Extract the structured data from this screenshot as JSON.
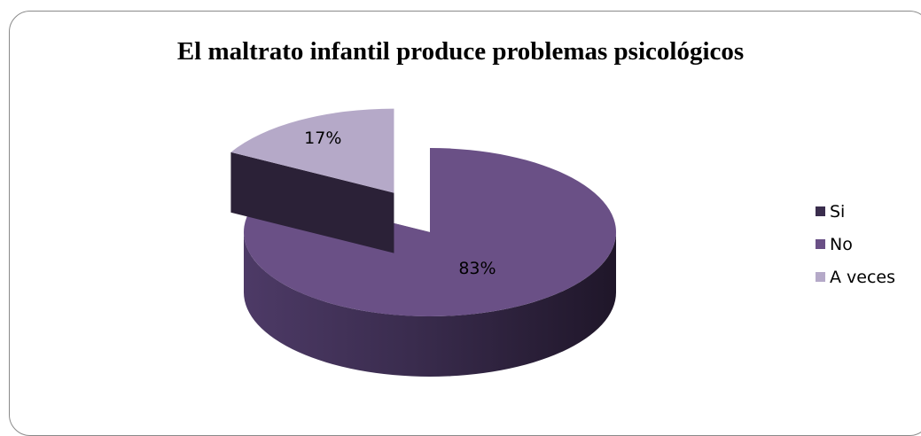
{
  "chart_data": {
    "type": "pie",
    "title": "El maltrato infantil produce problemas psicológicos",
    "categories": [
      "Si",
      "No",
      "A veces"
    ],
    "values": [
      0,
      83,
      17
    ],
    "data_labels": [
      "",
      "83%",
      "17%"
    ],
    "colors": [
      "#3a2d4d",
      "#6a5086",
      "#b5a9c8"
    ],
    "legend_position": "right",
    "style": "3d-exploded"
  }
}
